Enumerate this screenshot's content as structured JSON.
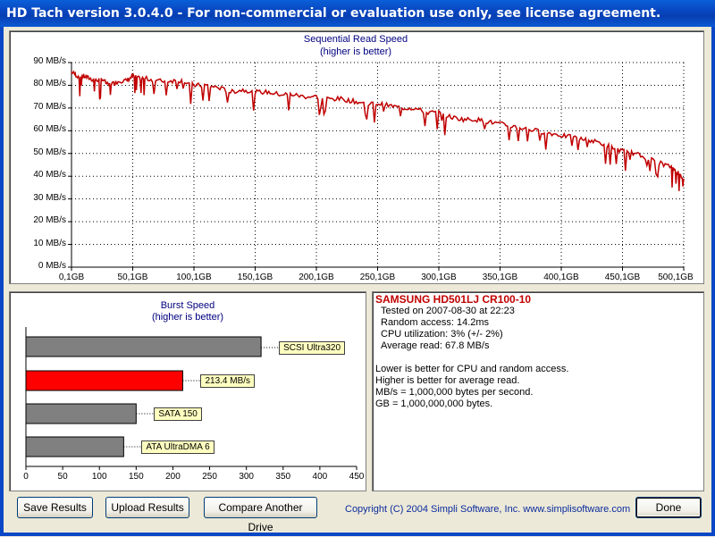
{
  "window": {
    "title": "HD Tach version 3.0.4.0  - For non-commercial or evaluation use only, see license agreement."
  },
  "sequential": {
    "title_line1": "Sequential Read Speed",
    "title_line2": "(higher is better)",
    "y_ticks": [
      "0 MB/s",
      "10 MB/s",
      "20 MB/s",
      "30 MB/s",
      "40 MB/s",
      "50 MB/s",
      "60 MB/s",
      "70 MB/s",
      "80 MB/s",
      "90 MB/s"
    ],
    "x_ticks": [
      "0,1GB",
      "50,1GB",
      "100,1GB",
      "150,1GB",
      "200,1GB",
      "250,1GB",
      "300,1GB",
      "350,1GB",
      "400,1GB",
      "450,1GB",
      "500,1GB"
    ],
    "line_color": "#c00000"
  },
  "chart_data": [
    {
      "type": "line",
      "title": "Sequential Read Speed",
      "subtitle": "(higher is better)",
      "xlabel": "",
      "ylabel": "",
      "x_unit": "GB",
      "y_unit": "MB/s",
      "xlim": [
        0.1,
        500.1
      ],
      "ylim": [
        0,
        90
      ],
      "grid": true,
      "x": [
        0.1,
        5,
        10,
        15,
        20,
        25,
        30,
        35,
        40,
        45,
        50,
        55,
        60,
        70,
        80,
        90,
        100,
        110,
        120,
        130,
        140,
        150,
        160,
        170,
        180,
        190,
        200,
        210,
        220,
        230,
        240,
        250,
        260,
        270,
        280,
        290,
        300,
        310,
        320,
        330,
        340,
        350,
        360,
        370,
        380,
        390,
        400,
        410,
        420,
        430,
        440,
        450,
        460,
        470,
        480,
        490,
        495,
        500.1
      ],
      "y": [
        86,
        84,
        84,
        83,
        82,
        83,
        80,
        81,
        82,
        82,
        84,
        83,
        83,
        82,
        82,
        82,
        80,
        80,
        79,
        77,
        78,
        77,
        77,
        76,
        76,
        75,
        75,
        74,
        74,
        73,
        72,
        72,
        71,
        70,
        70,
        68,
        68,
        66,
        65,
        65,
        64,
        63,
        62,
        61,
        60,
        59,
        58,
        57,
        56,
        55,
        53,
        51,
        50,
        48,
        46,
        44,
        42,
        39
      ]
    },
    {
      "type": "bar",
      "orientation": "horizontal",
      "title": "Burst Speed",
      "subtitle": "(higher is better)",
      "categories": [
        "SCSI Ultra320",
        "213.4 MB/s",
        "SATA 150",
        "ATA UltraDMA 6"
      ],
      "values": [
        320,
        213.4,
        150,
        133
      ],
      "colors": [
        "#808080",
        "#ff0000",
        "#808080",
        "#808080"
      ],
      "xlim": [
        0,
        450
      ],
      "x_ticks": [
        "0",
        "50",
        "100",
        "150",
        "200",
        "250",
        "300",
        "350",
        "400",
        "450"
      ]
    }
  ],
  "burst": {
    "title_line1": "Burst Speed",
    "title_line2": "(higher is better)",
    "x_ticks": [
      "0",
      "50",
      "100",
      "150",
      "200",
      "250",
      "300",
      "350",
      "400",
      "450"
    ],
    "bars": [
      {
        "label": "SCSI Ultra320",
        "value": 320,
        "color": "#808080"
      },
      {
        "label": "213.4 MB/s",
        "value": 213.4,
        "color": "#ff0000"
      },
      {
        "label": "SATA 150",
        "value": 150,
        "color": "#808080"
      },
      {
        "label": "ATA UltraDMA 6",
        "value": 133,
        "color": "#808080"
      }
    ]
  },
  "info": {
    "drive": "SAMSUNG HD501LJ CR100-10",
    "drive_color": "#c00000",
    "tested": "Tested on 2007-08-30 at 22:23",
    "random_access": "Random access: 14.2ms",
    "cpu": "CPU utilization: 3% (+/- 2%)",
    "average": "Average read: 67.8 MB/s",
    "note1": "Lower is better for CPU and random access.",
    "note2": "Higher is better for average read.",
    "note3": "MB/s = 1,000,000 bytes per second.",
    "note4": "GB = 1,000,000,000 bytes."
  },
  "buttons": {
    "save": "Save Results",
    "upload": "Upload Results",
    "compare": "Compare Another Drive",
    "done": "Done"
  },
  "copyright": "Copyright (C) 2004 Simpli Software, Inc. www.simplisoftware.com"
}
